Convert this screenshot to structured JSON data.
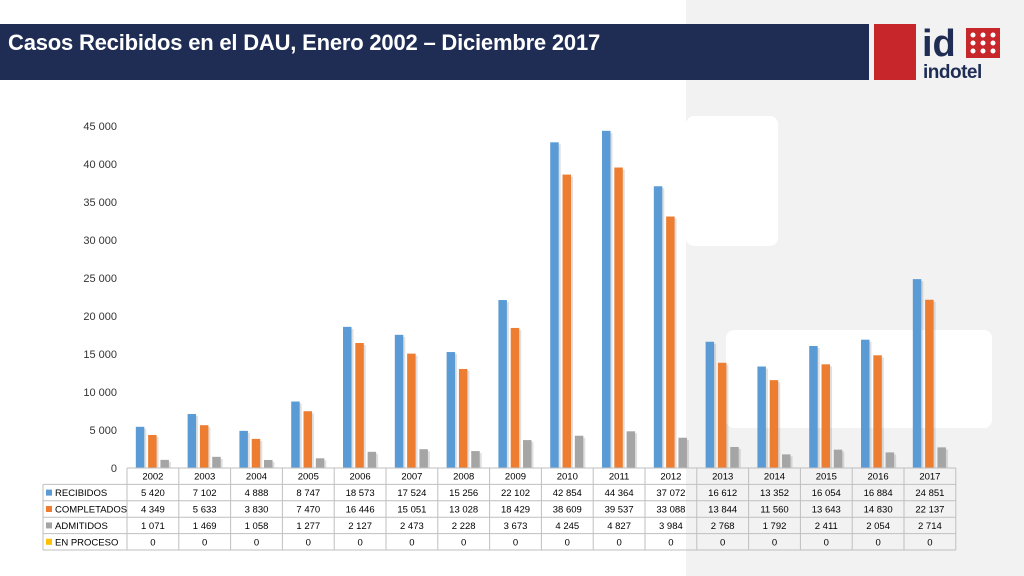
{
  "title": "Casos Recibidos en el DAU, Enero 2002 – Diciembre 2017",
  "logo": {
    "mark": "id",
    "name": "indotel"
  },
  "colors": {
    "navy": "#1f2d55",
    "red": "#c7262b"
  },
  "chart_data": {
    "type": "bar",
    "title": "",
    "xlabel": "",
    "ylabel": "",
    "ylim": [
      0,
      45000
    ],
    "yticks": [
      0,
      5000,
      10000,
      15000,
      20000,
      25000,
      30000,
      35000,
      40000,
      45000
    ],
    "ytick_labels": [
      "0",
      "5 000",
      "10 000",
      "15 000",
      "20 000",
      "25 000",
      "30 000",
      "35 000",
      "40 000",
      "45 000"
    ],
    "grid": false,
    "legend": "data-table",
    "categories": [
      "2002",
      "2003",
      "2004",
      "2005",
      "2006",
      "2007",
      "2008",
      "2009",
      "2010",
      "2011",
      "2012",
      "2013",
      "2014",
      "2015",
      "2016",
      "2017"
    ],
    "series": [
      {
        "name": "RECIBIDOS",
        "color": "#5b9bd5",
        "values": [
          5420,
          7102,
          4888,
          8747,
          18573,
          17524,
          15256,
          22102,
          42854,
          44364,
          37072,
          16612,
          13352,
          16054,
          16884,
          24851
        ],
        "labels": [
          "5 420",
          "7 102",
          "4 888",
          "8 747",
          "18 573",
          "17 524",
          "15 256",
          "22 102",
          "42 854",
          "44 364",
          "37 072",
          "16 612",
          "13 352",
          "16 054",
          "16 884",
          "24 851"
        ]
      },
      {
        "name": "COMPLETADOS",
        "color": "#ed7d31",
        "values": [
          4349,
          5633,
          3830,
          7470,
          16446,
          15051,
          13028,
          18429,
          38609,
          39537,
          33088,
          13844,
          11560,
          13643,
          14830,
          22137
        ],
        "labels": [
          "4 349",
          "5 633",
          "3 830",
          "7 470",
          "16 446",
          "15 051",
          "13 028",
          "18 429",
          "38 609",
          "39 537",
          "33 088",
          "13 844",
          "11 560",
          "13 643",
          "14 830",
          "22 137"
        ]
      },
      {
        "name": "ADMITIDOS",
        "color": "#a5a5a5",
        "values": [
          1071,
          1469,
          1058,
          1277,
          2127,
          2473,
          2228,
          3673,
          4245,
          4827,
          3984,
          2768,
          1792,
          2411,
          2054,
          2714
        ],
        "labels": [
          "1 071",
          "1 469",
          "1 058",
          "1 277",
          "2 127",
          "2 473",
          "2 228",
          "3 673",
          "4 245",
          "4 827",
          "3 984",
          "2 768",
          "1 792",
          "2 411",
          "2 054",
          "2 714"
        ]
      },
      {
        "name": "EN PROCESO",
        "color": "#ffc000",
        "values": [
          0,
          0,
          0,
          0,
          0,
          0,
          0,
          0,
          0,
          0,
          0,
          0,
          0,
          0,
          0,
          0
        ],
        "labels": [
          "0",
          "0",
          "0",
          "0",
          "0",
          "0",
          "0",
          "0",
          "0",
          "0",
          "0",
          "0",
          "0",
          "0",
          "0",
          "0"
        ]
      }
    ]
  }
}
